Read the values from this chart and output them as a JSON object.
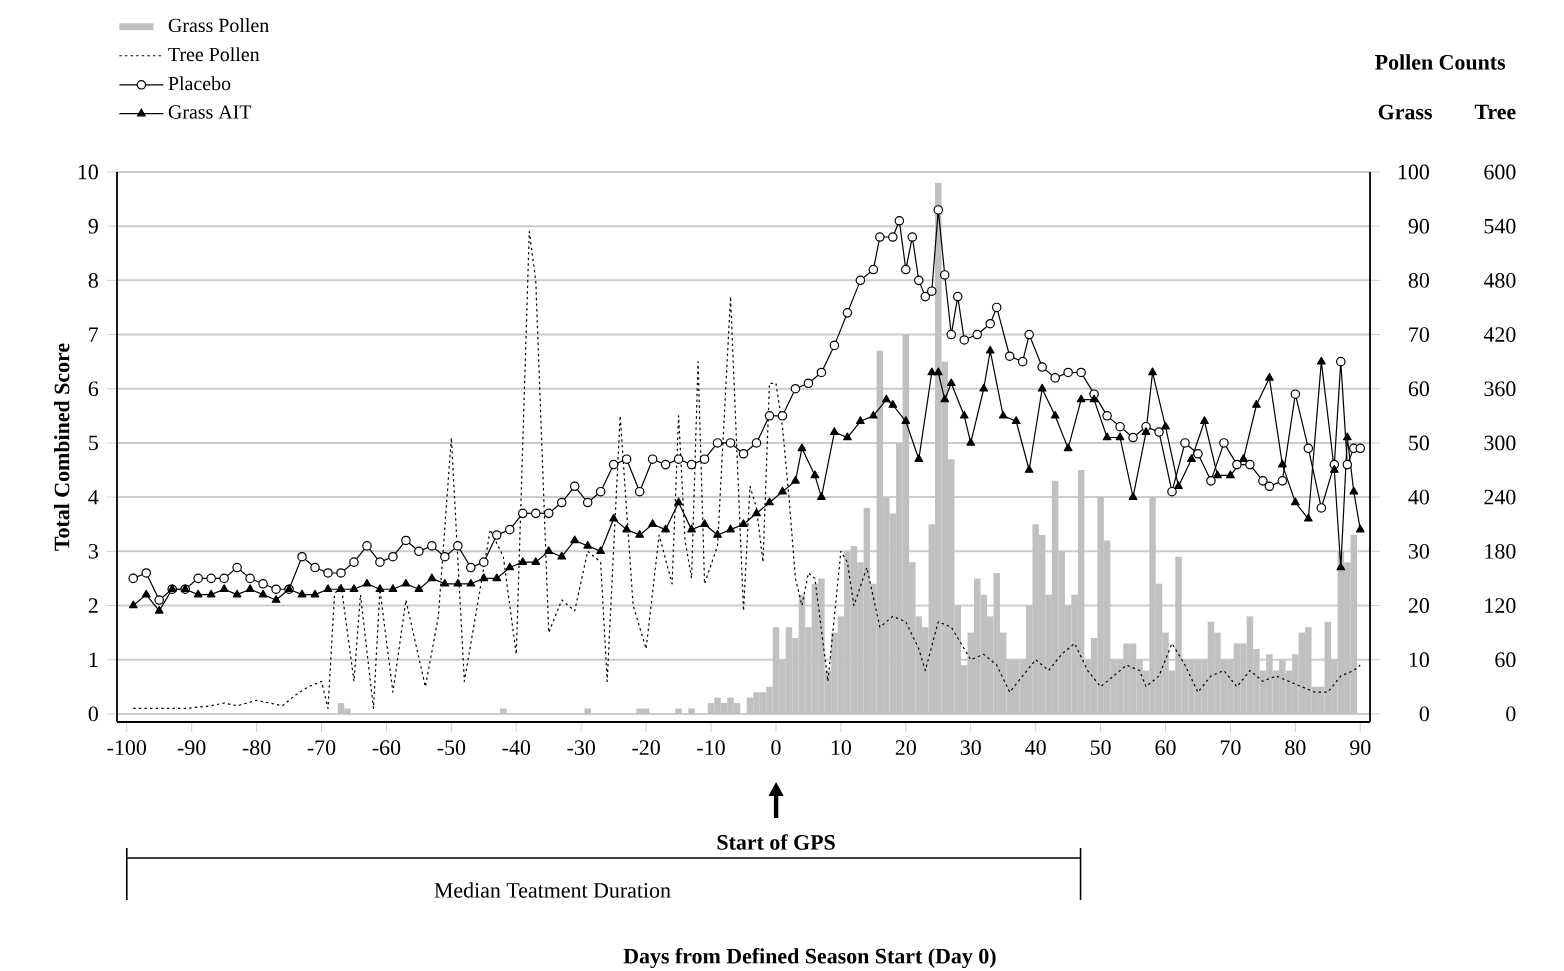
{
  "chart_data": {
    "type": "line",
    "ylabel": "Total Combined Score",
    "y2label": "Grass",
    "y3label": "Tree",
    "annotations": [
      "Pollen Counts",
      "Start of GPS",
      "Median Teatment Duration",
      "Days from Defined Season Start (Day 0)"
    ],
    "xlim": [
      -101.5,
      91.5
    ],
    "ylim": [
      -0.15,
      10
    ],
    "y2lim": [
      -1.5,
      100
    ],
    "y3lim": [
      -9,
      600
    ],
    "xticks": [
      -100,
      -90,
      -80,
      -70,
      -60,
      -50,
      -40,
      -30,
      -20,
      -10,
      0,
      10,
      20,
      30,
      40,
      50,
      60,
      70,
      80,
      90
    ],
    "yticks": [
      0,
      1,
      2,
      3,
      4,
      5,
      6,
      7,
      8,
      9,
      10
    ],
    "y2ticks": [
      0,
      10,
      20,
      30,
      40,
      50,
      60,
      70,
      80,
      90,
      100
    ],
    "y3ticks": [
      0,
      60,
      120,
      180,
      240,
      300,
      360,
      420,
      480,
      540,
      600
    ],
    "grid": "y",
    "legend": "top left",
    "series": [
      {
        "name": "Grass Pollen",
        "type": "bar",
        "axis": "y2",
        "color": "#c0c0c0",
        "x": [
          -67,
          -66,
          -42,
          -29,
          -21,
          -20,
          -15,
          -13,
          -10,
          -9,
          -8,
          -7,
          -6,
          -4,
          -3,
          -2,
          -1,
          0,
          1,
          2,
          3,
          4,
          5,
          6,
          7,
          8,
          9,
          10,
          11,
          12,
          13,
          14,
          15,
          16,
          17,
          18,
          19,
          20,
          21,
          22,
          23,
          24,
          25,
          26,
          27,
          28,
          29,
          30,
          31,
          32,
          33,
          34,
          35,
          36,
          37,
          38,
          39,
          40,
          41,
          42,
          43,
          44,
          45,
          46,
          47,
          48,
          49,
          50,
          51,
          52,
          53,
          54,
          55,
          56,
          57,
          58,
          59,
          60,
          61,
          62,
          63,
          64,
          65,
          66,
          67,
          68,
          69,
          70,
          71,
          72,
          73,
          74,
          75,
          76,
          77,
          78,
          79,
          80,
          81,
          82,
          83,
          84,
          85,
          86,
          87,
          88,
          89
        ],
        "values": [
          2,
          1,
          1,
          1,
          1,
          1,
          1,
          1,
          2,
          3,
          2,
          3,
          2,
          3,
          4,
          4,
          5,
          16,
          10,
          16,
          14,
          22,
          16,
          24,
          25,
          8,
          15,
          18,
          30,
          31,
          28,
          38,
          24,
          67,
          40,
          37,
          50,
          70,
          28,
          18,
          16,
          35,
          98,
          65,
          47,
          20,
          9,
          15,
          25,
          22,
          18,
          26,
          15,
          10,
          10,
          10,
          20,
          35,
          33,
          22,
          43,
          30,
          20,
          22,
          45,
          10,
          14,
          40,
          32,
          10,
          10,
          13,
          13,
          10,
          8,
          40,
          24,
          15,
          8,
          29,
          10,
          10,
          10,
          10,
          17,
          15,
          10,
          10,
          13,
          13,
          18,
          12,
          8,
          11,
          8,
          10,
          8,
          11,
          15,
          16,
          5,
          5,
          17,
          10,
          30,
          28,
          33
        ]
      },
      {
        "name": "Tree Pollen",
        "axis": "y3",
        "color": "#000000",
        "line_style": "dotted",
        "marker": "none",
        "x": [
          -99,
          -95,
          -91,
          -87,
          -85,
          -83,
          -80,
          -78,
          -76,
          -74,
          -72,
          -70,
          -69,
          -68,
          -67,
          -65,
          -64,
          -62,
          -61,
          -59,
          -57,
          -54,
          -52,
          -50,
          -48,
          -46,
          -44,
          -42,
          -40,
          -38,
          -37,
          -35,
          -33,
          -31,
          -29,
          -27,
          -26,
          -24,
          -22,
          -20,
          -18,
          -16,
          -15,
          -14,
          -13,
          -12,
          -11,
          -9,
          -7,
          -5,
          -4,
          -3,
          -2,
          -1,
          0,
          1,
          2,
          3,
          4,
          5,
          6,
          8,
          10,
          11,
          12,
          14,
          16,
          18,
          20,
          22,
          23,
          25,
          27,
          29,
          30,
          32,
          34,
          36,
          38,
          40,
          42,
          44,
          46,
          48,
          50,
          52,
          54,
          56,
          57,
          59,
          61,
          63,
          65,
          67,
          69,
          71,
          73,
          75,
          77,
          79,
          81,
          83,
          85,
          87,
          89,
          90
        ],
        "values": [
          6,
          6,
          6,
          9,
          12,
          9,
          15,
          12,
          9,
          21,
          30,
          36,
          6,
          132,
          144,
          36,
          132,
          6,
          138,
          24,
          126,
          30,
          108,
          306,
          36,
          120,
          204,
          174,
          66,
          534,
          480,
          90,
          126,
          114,
          180,
          168,
          36,
          330,
          120,
          72,
          198,
          144,
          330,
          192,
          150,
          390,
          144,
          186,
          462,
          114,
          252,
          228,
          168,
          366,
          366,
          318,
          240,
          150,
          120,
          156,
          150,
          36,
          180,
          168,
          120,
          162,
          96,
          108,
          102,
          72,
          48,
          102,
          96,
          72,
          60,
          66,
          54,
          24,
          42,
          60,
          48,
          66,
          78,
          48,
          30,
          42,
          54,
          48,
          30,
          42,
          78,
          54,
          24,
          42,
          48,
          30,
          48,
          36,
          42,
          36,
          30,
          24,
          24,
          42,
          48,
          54
        ]
      },
      {
        "name": "Placebo",
        "color": "#000000",
        "line_style": "solid",
        "marker": "circle",
        "x": [
          -99,
          -97,
          -95,
          -93,
          -91,
          -89,
          -87,
          -85,
          -83,
          -81,
          -79,
          -77,
          -75,
          -73,
          -71,
          -69,
          -67,
          -65,
          -63,
          -61,
          -59,
          -57,
          -55,
          -53,
          -51,
          -49,
          -47,
          -45,
          -43,
          -41,
          -39,
          -37,
          -35,
          -33,
          -31,
          -29,
          -27,
          -25,
          -23,
          -21,
          -19,
          -17,
          -15,
          -13,
          -11,
          -9,
          -7,
          -5,
          -3,
          -1,
          1,
          3,
          5,
          7,
          9,
          11,
          13,
          15,
          16,
          18,
          19,
          20,
          21,
          22,
          23,
          24,
          25,
          26,
          27,
          28,
          29,
          31,
          33,
          34,
          36,
          38,
          39,
          41,
          43,
          45,
          47,
          49,
          51,
          53,
          55,
          57,
          59,
          61,
          63,
          65,
          67,
          69,
          71,
          73,
          75,
          76,
          78,
          80,
          82,
          84,
          86,
          87,
          88,
          89,
          90
        ],
        "values": [
          2.5,
          2.6,
          2.1,
          2.3,
          2.3,
          2.5,
          2.5,
          2.5,
          2.7,
          2.5,
          2.4,
          2.3,
          2.3,
          2.9,
          2.7,
          2.6,
          2.6,
          2.8,
          3.1,
          2.8,
          2.9,
          3.2,
          3.0,
          3.1,
          2.9,
          3.1,
          2.7,
          2.8,
          3.3,
          3.4,
          3.7,
          3.7,
          3.7,
          3.9,
          4.2,
          3.9,
          4.1,
          4.6,
          4.7,
          4.1,
          4.7,
          4.6,
          4.7,
          4.6,
          4.7,
          5.0,
          5.0,
          4.8,
          5.0,
          5.5,
          5.5,
          6.0,
          6.1,
          6.3,
          6.8,
          7.4,
          8.0,
          8.2,
          8.8,
          8.8,
          9.1,
          8.2,
          8.8,
          8.0,
          7.7,
          7.8,
          9.3,
          8.1,
          7.0,
          7.7,
          6.9,
          7.0,
          7.2,
          7.5,
          6.6,
          6.5,
          7.0,
          6.4,
          6.2,
          6.3,
          6.3,
          5.9,
          5.5,
          5.3,
          5.1,
          5.3,
          5.2,
          4.1,
          5.0,
          4.8,
          4.3,
          5.0,
          4.6,
          4.6,
          4.3,
          4.2,
          4.3,
          5.9,
          4.9,
          3.8,
          4.6,
          6.5,
          4.6,
          4.9,
          4.9
        ]
      },
      {
        "name": "Grass AIT",
        "color": "#000000",
        "line_style": "solid",
        "marker": "triangle",
        "x": [
          -99,
          -97,
          -95,
          -93,
          -91,
          -89,
          -87,
          -85,
          -83,
          -81,
          -79,
          -77,
          -75,
          -73,
          -71,
          -69,
          -67,
          -65,
          -63,
          -61,
          -59,
          -57,
          -55,
          -53,
          -51,
          -49,
          -47,
          -45,
          -43,
          -41,
          -39,
          -37,
          -35,
          -33,
          -31,
          -29,
          -27,
          -25,
          -23,
          -21,
          -19,
          -17,
          -15,
          -13,
          -11,
          -9,
          -7,
          -5,
          -3,
          -1,
          1,
          3,
          4,
          6,
          7,
          9,
          11,
          13,
          15,
          17,
          18,
          20,
          22,
          24,
          25,
          26,
          27,
          29,
          30,
          32,
          33,
          35,
          37,
          39,
          41,
          43,
          45,
          47,
          49,
          51,
          53,
          55,
          57,
          58,
          60,
          62,
          64,
          66,
          68,
          70,
          72,
          74,
          76,
          78,
          80,
          82,
          84,
          86,
          87,
          88,
          89,
          90
        ],
        "values": [
          2.0,
          2.2,
          1.9,
          2.3,
          2.3,
          2.2,
          2.2,
          2.3,
          2.2,
          2.3,
          2.2,
          2.1,
          2.3,
          2.2,
          2.2,
          2.3,
          2.3,
          2.3,
          2.4,
          2.3,
          2.3,
          2.4,
          2.3,
          2.5,
          2.4,
          2.4,
          2.4,
          2.5,
          2.5,
          2.7,
          2.8,
          2.8,
          3.0,
          2.9,
          3.2,
          3.1,
          3.0,
          3.6,
          3.4,
          3.3,
          3.5,
          3.4,
          3.9,
          3.4,
          3.5,
          3.3,
          3.4,
          3.5,
          3.7,
          3.9,
          4.1,
          4.3,
          4.9,
          4.4,
          4.0,
          5.2,
          5.1,
          5.4,
          5.5,
          5.8,
          5.7,
          5.4,
          4.7,
          6.3,
          6.3,
          5.8,
          6.1,
          5.5,
          5.0,
          6.0,
          6.7,
          5.5,
          5.4,
          4.5,
          6.0,
          5.5,
          4.9,
          5.8,
          5.8,
          5.1,
          5.1,
          4.0,
          5.2,
          6.3,
          5.3,
          4.2,
          4.7,
          5.4,
          4.4,
          4.4,
          4.7,
          5.7,
          6.2,
          4.6,
          3.9,
          3.6,
          6.5,
          4.5,
          2.7,
          5.1,
          4.1,
          3.4
        ]
      }
    ]
  }
}
